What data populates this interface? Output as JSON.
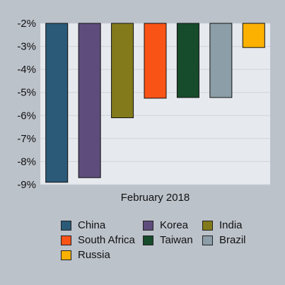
{
  "chart_data": {
    "type": "bar",
    "title": "",
    "xlabel": "",
    "ylabel": "",
    "categories": [
      "February 2018"
    ],
    "ylim": [
      -9,
      -2
    ],
    "yticks": [
      -2,
      -3,
      -4,
      -5,
      -6,
      -7,
      -8,
      -9
    ],
    "ytick_labels": [
      "-2%",
      "-3%",
      "-4%",
      "-5%",
      "-6%",
      "-7%",
      "-8%",
      "-9%"
    ],
    "grid": true,
    "legend_position": "bottom",
    "series": [
      {
        "name": "China",
        "values": [
          -8.9
        ],
        "color": "#2a5a78"
      },
      {
        "name": "Korea",
        "values": [
          -8.7
        ],
        "color": "#5e4d7c"
      },
      {
        "name": "India",
        "values": [
          -6.1
        ],
        "color": "#837a1b"
      },
      {
        "name": "South Africa",
        "values": [
          -5.25
        ],
        "color": "#fa5316"
      },
      {
        "name": "Taiwan",
        "values": [
          -5.22
        ],
        "color": "#164b2c"
      },
      {
        "name": "Brazil",
        "values": [
          -5.22
        ],
        "color": "#8c9ea8"
      },
      {
        "name": "Russia",
        "values": [
          -3.05
        ],
        "color": "#fcb100"
      }
    ]
  }
}
